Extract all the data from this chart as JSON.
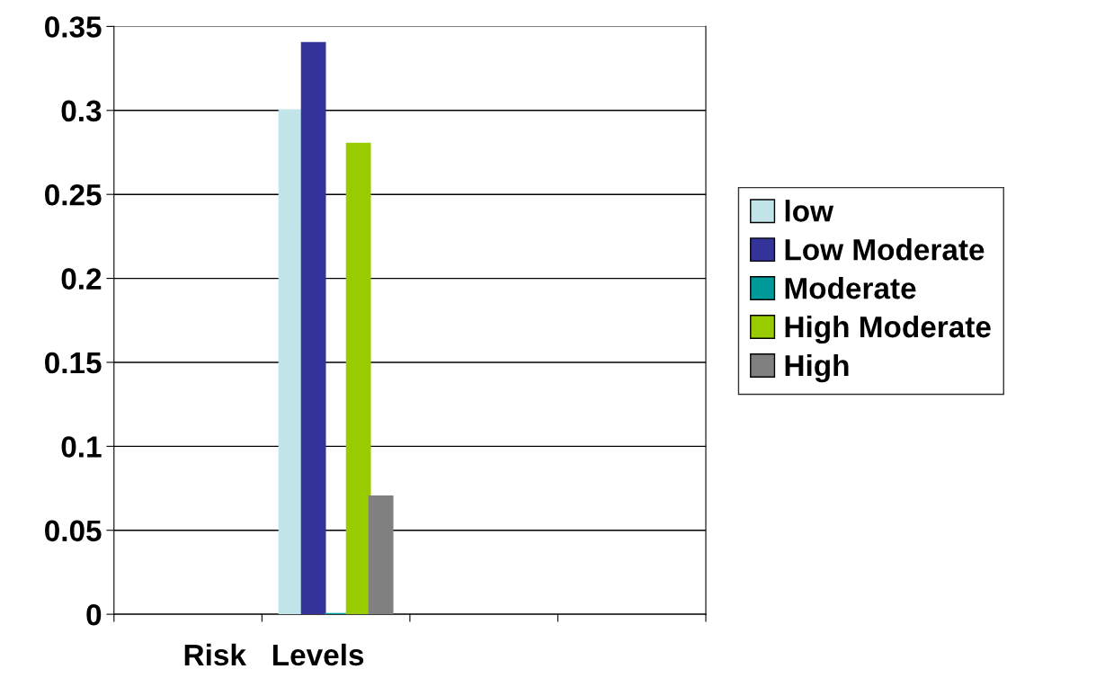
{
  "chart_data": {
    "type": "bar",
    "xlabel": "Risk   Levels",
    "categories": [
      null,
      null,
      null,
      null
    ],
    "series": [
      {
        "name": "low",
        "color": "#c0e4e8",
        "values": [
          null,
          0.3,
          null,
          null
        ]
      },
      {
        "name": "Low Moderate",
        "color": "#333399",
        "values": [
          null,
          0.34,
          null,
          null
        ]
      },
      {
        "name": "Moderate",
        "color": "#009999",
        "values": [
          null,
          0,
          null,
          null
        ]
      },
      {
        "name": "High Moderate",
        "color": "#99cc00",
        "values": [
          null,
          0.28,
          null,
          null
        ]
      },
      {
        "name": "High",
        "color": "#808080",
        "values": [
          null,
          0.07,
          null,
          null
        ]
      }
    ],
    "ylim": [
      0,
      0.35
    ],
    "yticks": [
      {
        "value": 0,
        "label": "0"
      },
      0.05,
      0.1,
      0.15,
      0.2,
      0.25,
      0.3,
      0.35
    ],
    "grid": "y",
    "legend": "right"
  }
}
